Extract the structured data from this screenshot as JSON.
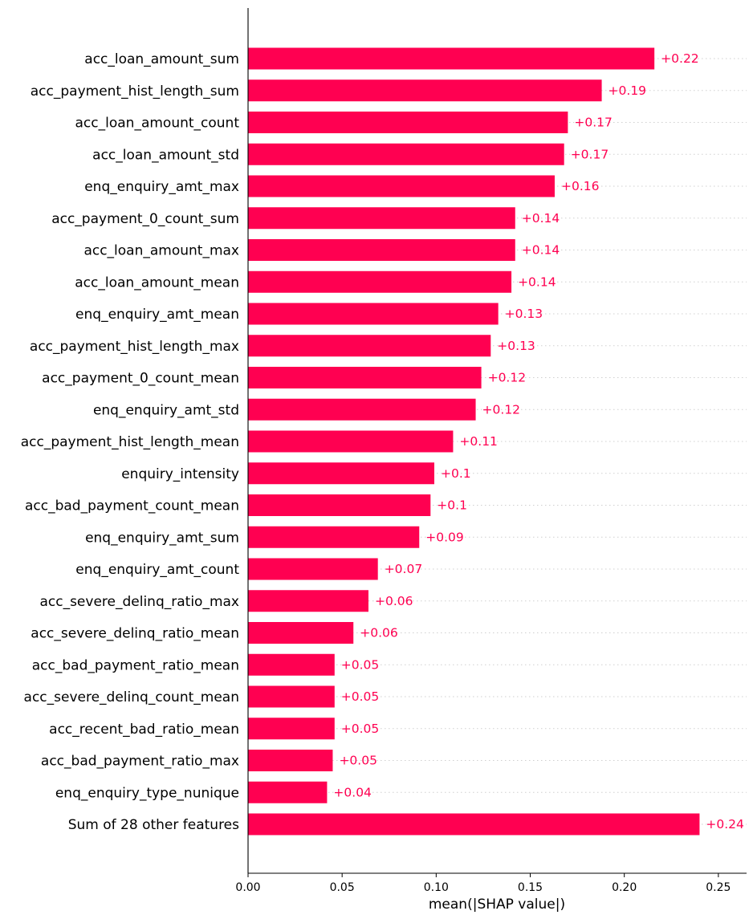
{
  "chart_data": {
    "type": "bar",
    "orientation": "horizontal",
    "xlabel": "mean(|SHAP value|)",
    "xlim": [
      0.0,
      0.265
    ],
    "xticks": [
      0.0,
      0.05,
      0.1,
      0.15,
      0.2,
      0.25
    ],
    "xtick_labels": [
      "0.00",
      "0.05",
      "0.10",
      "0.15",
      "0.20",
      "0.25"
    ],
    "grid": "dotted row guides",
    "bar_color": "#ff0051",
    "categories": [
      "acc_loan_amount_sum",
      "acc_payment_hist_length_sum",
      "acc_loan_amount_count",
      "acc_loan_amount_std",
      "enq_enquiry_amt_max",
      "acc_payment_0_count_sum",
      "acc_loan_amount_max",
      "acc_loan_amount_mean",
      "enq_enquiry_amt_mean",
      "acc_payment_hist_length_max",
      "acc_payment_0_count_mean",
      "enq_enquiry_amt_std",
      "acc_payment_hist_length_mean",
      "enquiry_intensity",
      "acc_bad_payment_count_mean",
      "enq_enquiry_amt_sum",
      "enq_enquiry_amt_count",
      "acc_severe_delinq_ratio_max",
      "acc_severe_delinq_ratio_mean",
      "acc_bad_payment_ratio_mean",
      "acc_severe_delinq_count_mean",
      "acc_recent_bad_ratio_mean",
      "acc_bad_payment_ratio_max",
      "enq_enquiry_type_nunique",
      "Sum of 28 other features"
    ],
    "values": [
      0.216,
      0.188,
      0.17,
      0.168,
      0.163,
      0.142,
      0.142,
      0.14,
      0.133,
      0.129,
      0.124,
      0.121,
      0.109,
      0.099,
      0.097,
      0.091,
      0.069,
      0.064,
      0.056,
      0.046,
      0.046,
      0.046,
      0.045,
      0.042,
      0.24
    ],
    "value_labels": [
      "+0.22",
      "+0.19",
      "+0.17",
      "+0.17",
      "+0.16",
      "+0.14",
      "+0.14",
      "+0.14",
      "+0.13",
      "+0.13",
      "+0.12",
      "+0.12",
      "+0.11",
      "+0.1",
      "+0.1",
      "+0.09",
      "+0.07",
      "+0.06",
      "+0.06",
      "+0.05",
      "+0.05",
      "+0.05",
      "+0.05",
      "+0.04",
      "+0.24"
    ]
  }
}
